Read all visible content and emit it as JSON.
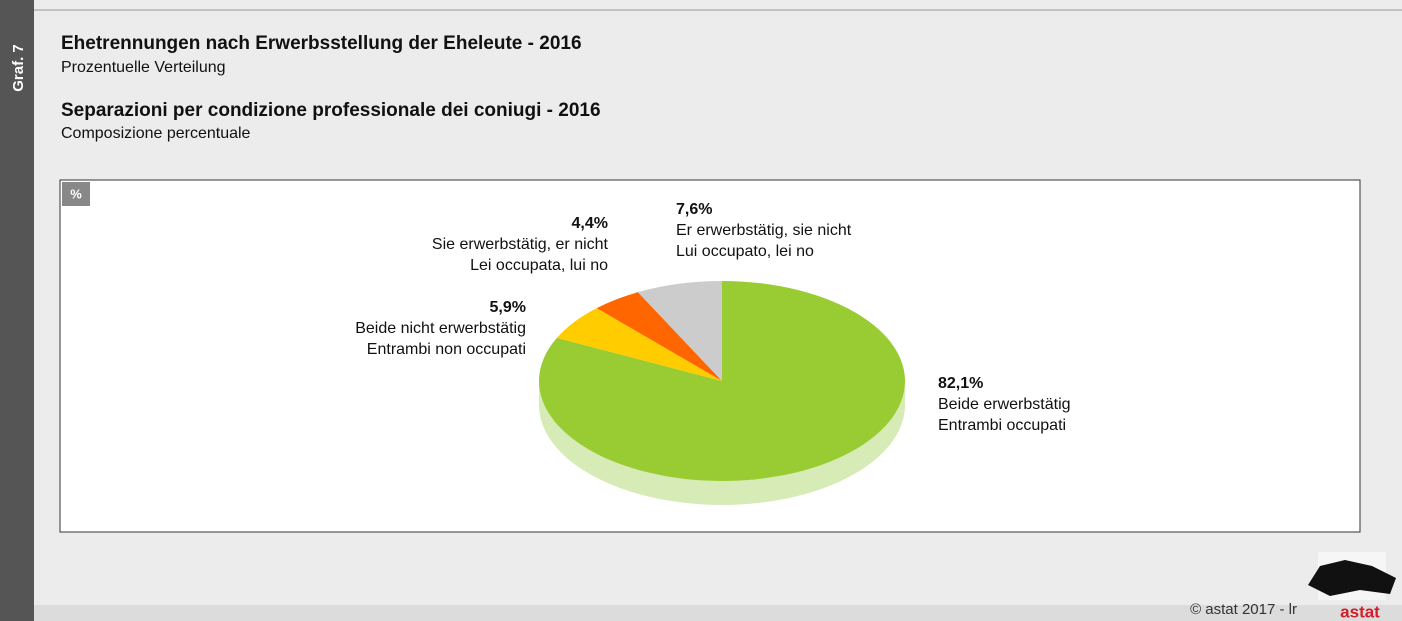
{
  "side_label": "Graf. 7",
  "chart_data": {
    "type": "pie",
    "title": "Ehetrennungen nach Erwerbsstellung der Eheleute - 2016",
    "subtitle": "Prozentuelle Verteilung",
    "title_it": "Separazioni per condizione professionale dei coniugi - 2016",
    "subtitle_it": "Composizione percentuale",
    "unit": "%",
    "categories": [
      [
        "Beide erwerbstätig",
        "Entrambi occupati"
      ],
      [
        "Beide nicht erwerbstätig",
        "Entrambi non occupati"
      ],
      [
        "Sie erwerbstätig, er nicht",
        "Lei occupata, lui no"
      ],
      [
        "Er erwerbstätig, sie nicht",
        "Lui occupato, lei no"
      ]
    ],
    "values": [
      82.1,
      5.9,
      4.4,
      7.6
    ],
    "value_labels": [
      "82,1%",
      "5,9%",
      "4,4%",
      "7,6%"
    ],
    "colors": [
      "#99cc33",
      "#ffcc00",
      "#ff6600",
      "#cccccc"
    ]
  },
  "footer": {
    "copyright": "© astat 2017 - lr",
    "logo": "astat"
  }
}
